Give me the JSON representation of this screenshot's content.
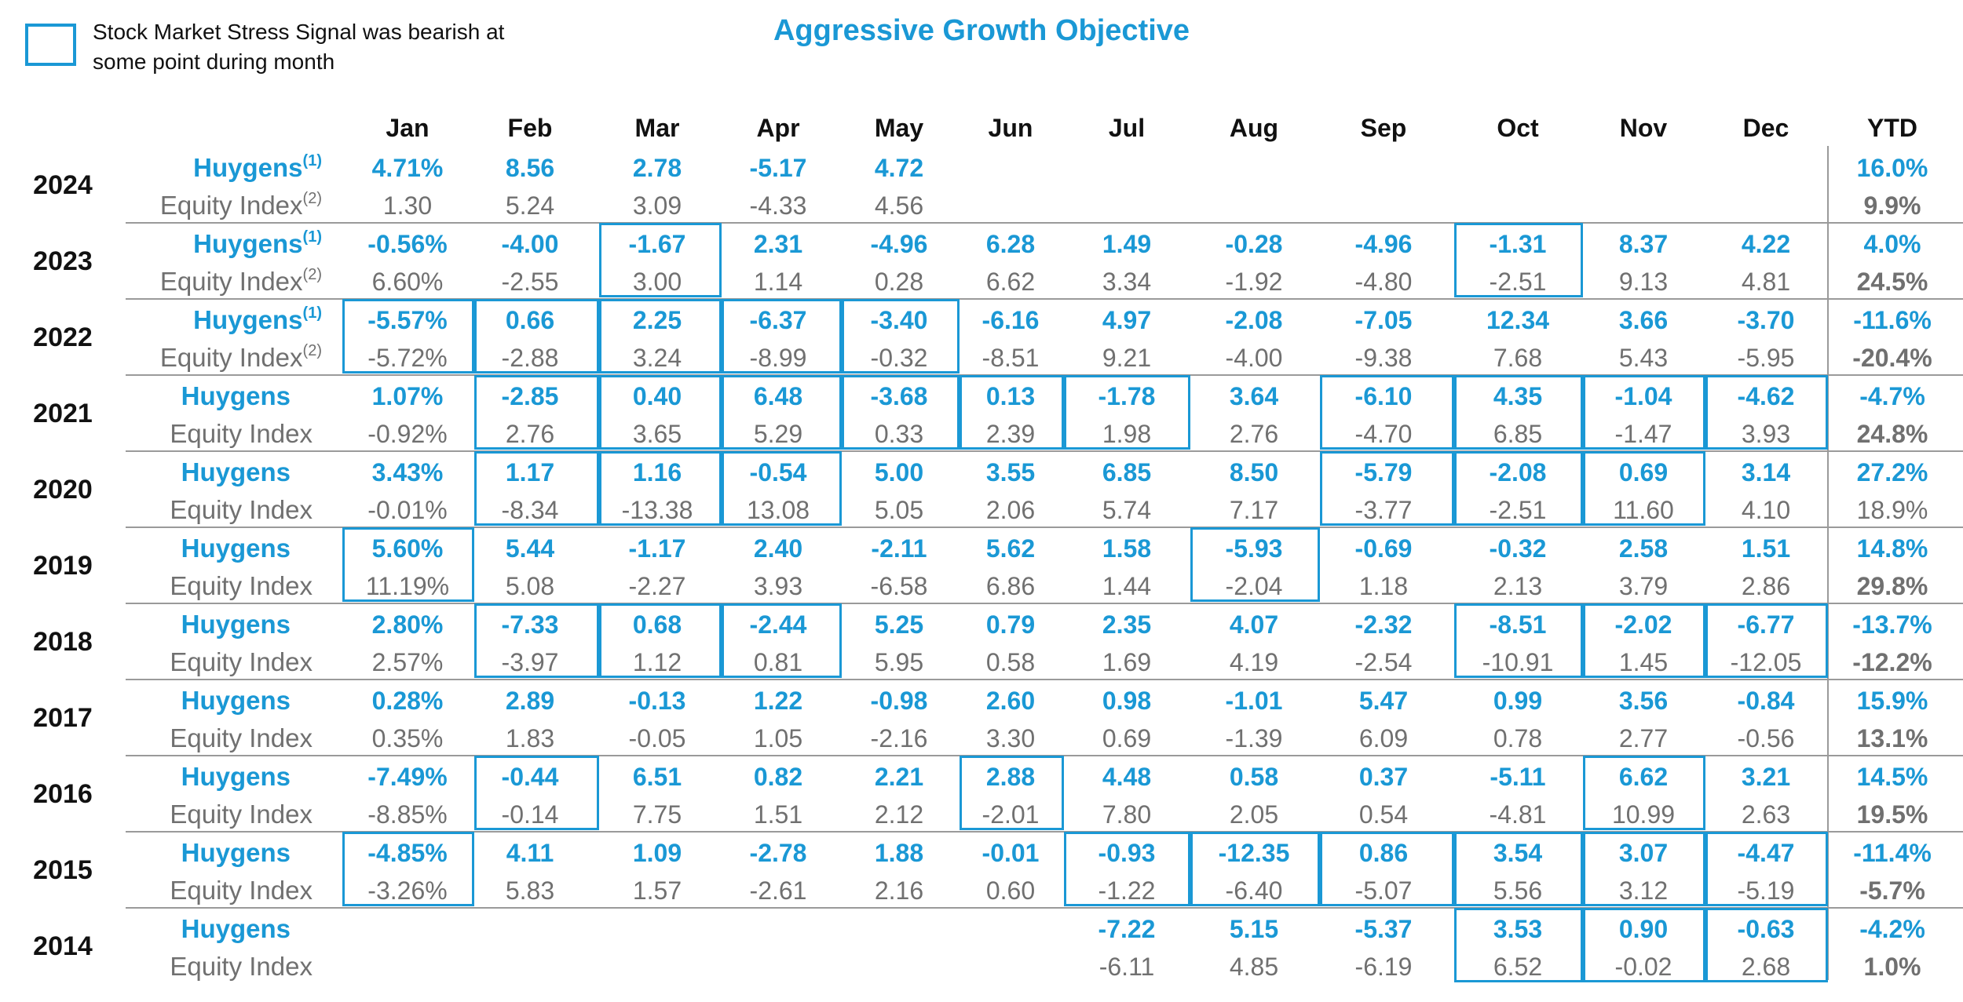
{
  "legend": {
    "text": "Stock Market Stress Signal was bearish at some point during month"
  },
  "title": "Aggressive Growth Objective",
  "colors": {
    "accent": "#1a98d5",
    "index_text": "#707070",
    "heading": "#111111",
    "rule": "#9a9a9a"
  },
  "months": [
    "Jan",
    "Feb",
    "Mar",
    "Apr",
    "May",
    "Jun",
    "Jul",
    "Aug",
    "Sep",
    "Oct",
    "Nov",
    "Dec"
  ],
  "ytd_header": "YTD",
  "rows": [
    {
      "year": "2024",
      "huygens_label": "Huygens",
      "index_label": "Equity Index",
      "label_sup": "(1)",
      "index_sup": "(2)",
      "huygens": [
        "4.71%",
        "8.56",
        "2.78",
        "-5.17",
        "4.72",
        "",
        "",
        "",
        "",
        "",
        "",
        ""
      ],
      "index": [
        "1.30",
        "5.24",
        "3.09",
        "-4.33",
        "4.56",
        "",
        "",
        "",
        "",
        "",
        "",
        ""
      ],
      "huygens_ytd": "16.0%",
      "index_ytd": "9.9%",
      "index_ytd_bold": true,
      "stress": []
    },
    {
      "year": "2023",
      "huygens_label": "Huygens",
      "index_label": "Equity Index",
      "label_sup": "(1)",
      "index_sup": "(2)",
      "huygens": [
        "-0.56%",
        "-4.00",
        "-1.67",
        "2.31",
        "-4.96",
        "6.28",
        "1.49",
        "-0.28",
        "-4.96",
        "-1.31",
        "8.37",
        "4.22"
      ],
      "index": [
        "6.60%",
        "-2.55",
        "3.00",
        "1.14",
        "0.28",
        "6.62",
        "3.34",
        "-1.92",
        "-4.80",
        "-2.51",
        "9.13",
        "4.81"
      ],
      "huygens_ytd": "4.0%",
      "index_ytd": "24.5%",
      "index_ytd_bold": true,
      "stress": [
        "Mar",
        "Oct"
      ]
    },
    {
      "year": "2022",
      "huygens_label": "Huygens",
      "index_label": "Equity Index",
      "label_sup": "(1)",
      "index_sup": "(2)",
      "huygens": [
        "-5.57%",
        "0.66",
        "2.25",
        "-6.37",
        "-3.40",
        "-6.16",
        "4.97",
        "-2.08",
        "-7.05",
        "12.34",
        "3.66",
        "-3.70"
      ],
      "index": [
        "-5.72%",
        "-2.88",
        "3.24",
        "-8.99",
        "-0.32",
        "-8.51",
        "9.21",
        "-4.00",
        "-9.38",
        "7.68",
        "5.43",
        "-5.95"
      ],
      "huygens_ytd": "-11.6%",
      "index_ytd": "-20.4%",
      "index_ytd_bold": true,
      "stress": [
        "Jan",
        "Feb",
        "Mar",
        "Apr",
        "May"
      ]
    },
    {
      "year": "2021",
      "huygens_label": "Huygens",
      "index_label": "Equity Index",
      "label_sup": "",
      "index_sup": "",
      "huygens": [
        "1.07%",
        "-2.85",
        "0.40",
        "6.48",
        "-3.68",
        "0.13",
        "-1.78",
        "3.64",
        "-6.10",
        "4.35",
        "-1.04",
        "-4.62"
      ],
      "index": [
        "-0.92%",
        "2.76",
        "3.65",
        "5.29",
        "0.33",
        "2.39",
        "1.98",
        "2.76",
        "-4.70",
        "6.85",
        "-1.47",
        "3.93"
      ],
      "huygens_ytd": "-4.7%",
      "index_ytd": "24.8%",
      "index_ytd_bold": true,
      "stress": [
        "Feb",
        "Mar",
        "Apr",
        "May",
        "Jun",
        "Jul",
        "Sep",
        "Oct",
        "Nov",
        "Dec"
      ]
    },
    {
      "year": "2020",
      "huygens_label": "Huygens",
      "index_label": "Equity Index",
      "label_sup": "",
      "index_sup": "",
      "huygens": [
        "3.43%",
        "1.17",
        "1.16",
        "-0.54",
        "5.00",
        "3.55",
        "6.85",
        "8.50",
        "-5.79",
        "-2.08",
        "0.69",
        "3.14"
      ],
      "index": [
        "-0.01%",
        "-8.34",
        "-13.38",
        "13.08",
        "5.05",
        "2.06",
        "5.74",
        "7.17",
        "-3.77",
        "-2.51",
        "11.60",
        "4.10"
      ],
      "huygens_ytd": "27.2%",
      "index_ytd": "18.9%",
      "index_ytd_bold": false,
      "stress": [
        "Feb",
        "Mar",
        "Apr",
        "Sep",
        "Oct",
        "Nov"
      ]
    },
    {
      "year": "2019",
      "huygens_label": "Huygens",
      "index_label": "Equity Index",
      "label_sup": "",
      "index_sup": "",
      "huygens": [
        "5.60%",
        "5.44",
        "-1.17",
        "2.40",
        "-2.11",
        "5.62",
        "1.58",
        "-5.93",
        "-0.69",
        "-0.32",
        "2.58",
        "1.51"
      ],
      "index": [
        "11.19%",
        "5.08",
        "-2.27",
        "3.93",
        "-6.58",
        "6.86",
        "1.44",
        "-2.04",
        "1.18",
        "2.13",
        "3.79",
        "2.86"
      ],
      "huygens_ytd": "14.8%",
      "index_ytd": "29.8%",
      "index_ytd_bold": true,
      "stress": [
        "Jan",
        "Aug"
      ]
    },
    {
      "year": "2018",
      "huygens_label": "Huygens",
      "index_label": "Equity Index",
      "label_sup": "",
      "index_sup": "",
      "huygens": [
        "2.80%",
        "-7.33",
        "0.68",
        "-2.44",
        "5.25",
        "0.79",
        "2.35",
        "4.07",
        "-2.32",
        "-8.51",
        "-2.02",
        "-6.77"
      ],
      "index": [
        "2.57%",
        "-3.97",
        "1.12",
        "0.81",
        "5.95",
        "0.58",
        "1.69",
        "4.19",
        "-2.54",
        "-10.91",
        "1.45",
        "-12.05"
      ],
      "huygens_ytd": "-13.7%",
      "index_ytd": "-12.2%",
      "index_ytd_bold": true,
      "stress": [
        "Feb",
        "Mar",
        "Apr",
        "Oct",
        "Nov",
        "Dec"
      ]
    },
    {
      "year": "2017",
      "huygens_label": "Huygens",
      "index_label": "Equity Index",
      "label_sup": "",
      "index_sup": "",
      "huygens": [
        "0.28%",
        "2.89",
        "-0.13",
        "1.22",
        "-0.98",
        "2.60",
        "0.98",
        "-1.01",
        "5.47",
        "0.99",
        "3.56",
        "-0.84"
      ],
      "index": [
        "0.35%",
        "1.83",
        "-0.05",
        "1.05",
        "-2.16",
        "3.30",
        "0.69",
        "-1.39",
        "6.09",
        "0.78",
        "2.77",
        "-0.56"
      ],
      "huygens_ytd": "15.9%",
      "index_ytd": "13.1%",
      "index_ytd_bold": true,
      "stress": []
    },
    {
      "year": "2016",
      "huygens_label": "Huygens",
      "index_label": "Equity Index",
      "label_sup": "",
      "index_sup": "",
      "huygens": [
        "-7.49%",
        "-0.44",
        "6.51",
        "0.82",
        "2.21",
        "2.88",
        "4.48",
        "0.58",
        "0.37",
        "-5.11",
        "6.62",
        "3.21"
      ],
      "index": [
        "-8.85%",
        "-0.14",
        "7.75",
        "1.51",
        "2.12",
        "-2.01",
        "7.80",
        "2.05",
        "0.54",
        "-4.81",
        "10.99",
        "2.63"
      ],
      "huygens_ytd": "14.5%",
      "index_ytd": "19.5%",
      "index_ytd_bold": true,
      "stress": [
        "Feb",
        "Jun",
        "Nov"
      ]
    },
    {
      "year": "2015",
      "huygens_label": "Huygens",
      "index_label": "Equity Index",
      "label_sup": "",
      "index_sup": "",
      "huygens": [
        "-4.85%",
        "4.11",
        "1.09",
        "-2.78",
        "1.88",
        "-0.01",
        "-0.93",
        "-12.35",
        "0.86",
        "3.54",
        "3.07",
        "-4.47"
      ],
      "index": [
        "-3.26%",
        "5.83",
        "1.57",
        "-2.61",
        "2.16",
        "0.60",
        "-1.22",
        "-6.40",
        "-5.07",
        "5.56",
        "3.12",
        "-5.19"
      ],
      "huygens_ytd": "-11.4%",
      "index_ytd": "-5.7%",
      "index_ytd_bold": true,
      "stress": [
        "Jan",
        "Jul",
        "Aug",
        "Sep",
        "Oct",
        "Nov",
        "Dec"
      ]
    },
    {
      "year": "2014",
      "huygens_label": "Huygens",
      "index_label": "Equity Index",
      "label_sup": "",
      "index_sup": "",
      "huygens": [
        "",
        "",
        "",
        "",
        "",
        "",
        "-7.22",
        "5.15",
        "-5.37",
        "3.53",
        "0.90",
        "-0.63"
      ],
      "index": [
        "",
        "",
        "",
        "",
        "",
        "",
        "-6.11",
        "4.85",
        "-6.19",
        "6.52",
        "-0.02",
        "2.68"
      ],
      "huygens_ytd": "-4.2%",
      "index_ytd": "1.0%",
      "index_ytd_bold": true,
      "stress": [
        "Oct",
        "Nov",
        "Dec"
      ]
    }
  ]
}
